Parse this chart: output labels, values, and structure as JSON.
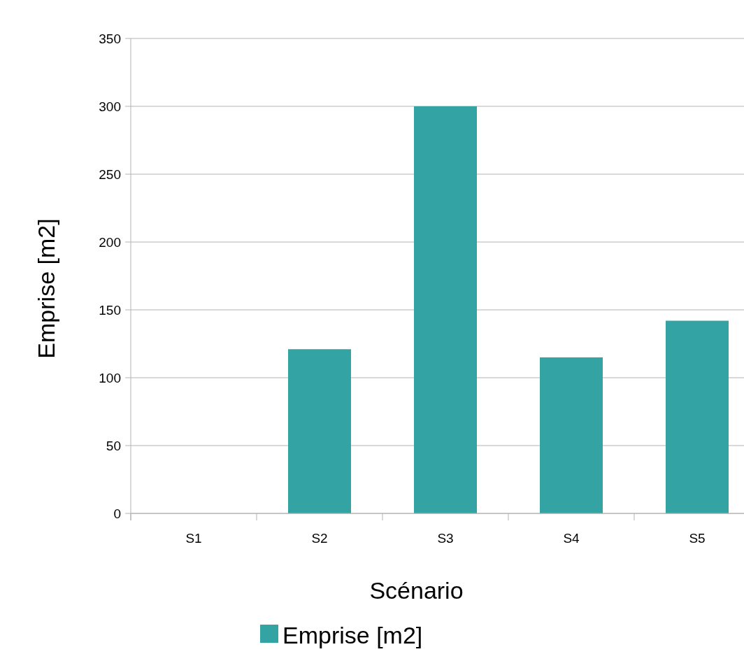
{
  "chart_data": {
    "type": "bar",
    "xlabel": "Scénario",
    "ylabel": "Emprise [m2]",
    "categories": [
      "S1",
      "S2",
      "S3",
      "S4",
      "S5"
    ],
    "series": [
      {
        "name": "Emprise [m2]",
        "color": "#33a3a3",
        "values": [
          0,
          121,
          300,
          115,
          142
        ]
      }
    ],
    "ylim": [
      0,
      350
    ],
    "yticks": [
      0,
      50,
      100,
      150,
      200,
      250,
      300,
      350
    ],
    "grid": "y",
    "legend": "bottom"
  }
}
